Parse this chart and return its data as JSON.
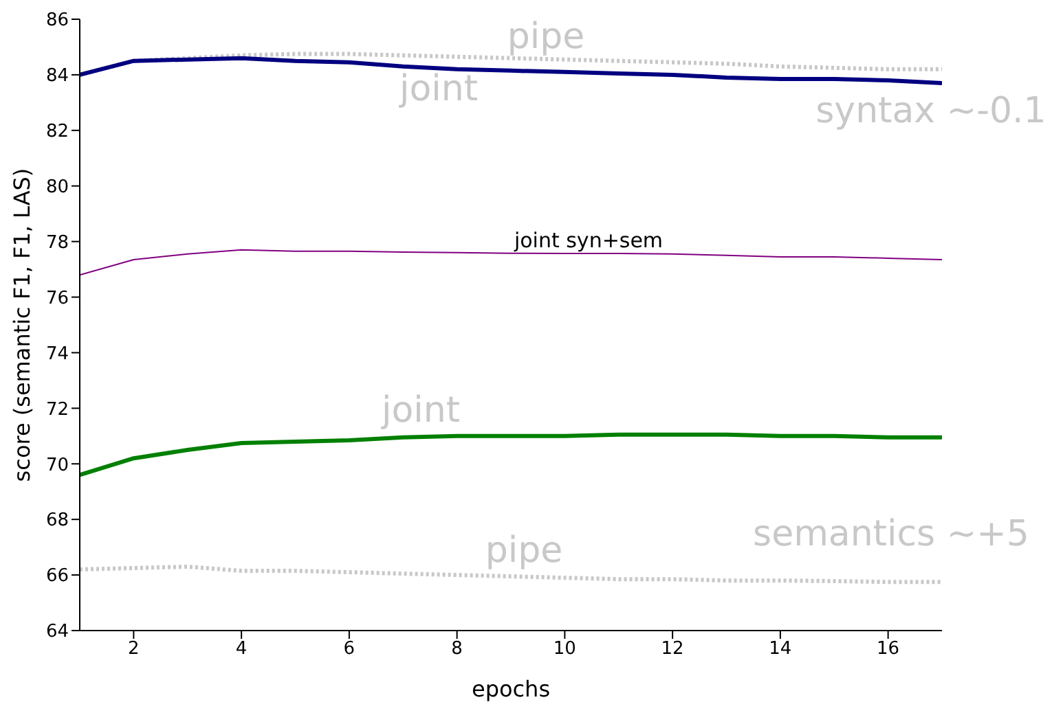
{
  "chart_data": {
    "type": "line",
    "xlabel": "epochs",
    "ylabel": "score (semantic F1, F1, LAS)",
    "x": [
      1,
      2,
      3,
      4,
      5,
      6,
      7,
      8,
      9,
      10,
      11,
      12,
      13,
      14,
      15,
      16,
      17
    ],
    "series": [
      {
        "color": "#c8c8c8",
        "line_style": "dotted",
        "values": [
          84.0,
          84.5,
          84.6,
          84.7,
          84.75,
          84.75,
          84.7,
          84.65,
          84.6,
          84.55,
          84.5,
          84.45,
          84.4,
          84.3,
          84.25,
          84.2,
          84.2
        ]
      },
      {
        "color": "#000080",
        "line_style": "solid",
        "values": [
          84.0,
          84.5,
          84.55,
          84.6,
          84.5,
          84.45,
          84.3,
          84.2,
          84.15,
          84.1,
          84.05,
          84.0,
          83.9,
          83.85,
          83.85,
          83.8,
          83.7
        ]
      },
      {
        "color": "#800080",
        "line_style": "solid",
        "values": [
          76.8,
          77.35,
          77.55,
          77.7,
          77.65,
          77.65,
          77.62,
          77.6,
          77.58,
          77.57,
          77.57,
          77.55,
          77.5,
          77.45,
          77.45,
          77.4,
          77.35
        ]
      },
      {
        "color": "#008000",
        "line_style": "solid",
        "values": [
          69.6,
          70.2,
          70.5,
          70.75,
          70.8,
          70.85,
          70.95,
          71.0,
          71.0,
          71.0,
          71.05,
          71.05,
          71.05,
          71.0,
          71.0,
          70.95,
          70.95
        ]
      },
      {
        "color": "#c8c8c8",
        "line_style": "dotted",
        "values": [
          66.2,
          66.25,
          66.3,
          66.15,
          66.15,
          66.1,
          66.05,
          66.0,
          65.95,
          65.9,
          65.85,
          65.85,
          65.8,
          65.8,
          65.78,
          65.75,
          65.75
        ]
      }
    ],
    "annotations": [
      "pipe",
      "joint",
      "syntax ~-0.1",
      "joint syn+sem",
      "joint",
      "pipe",
      "semantics ~+5"
    ],
    "xlim": [
      1,
      17
    ],
    "xticks": [
      2,
      4,
      6,
      8,
      10,
      12,
      14,
      16
    ],
    "ylim": [
      64,
      86
    ],
    "yticks": [
      64,
      66,
      68,
      70,
      72,
      74,
      76,
      78,
      80,
      82,
      84,
      86
    ],
    "grid": false,
    "legend": false,
    "marker": "none"
  }
}
